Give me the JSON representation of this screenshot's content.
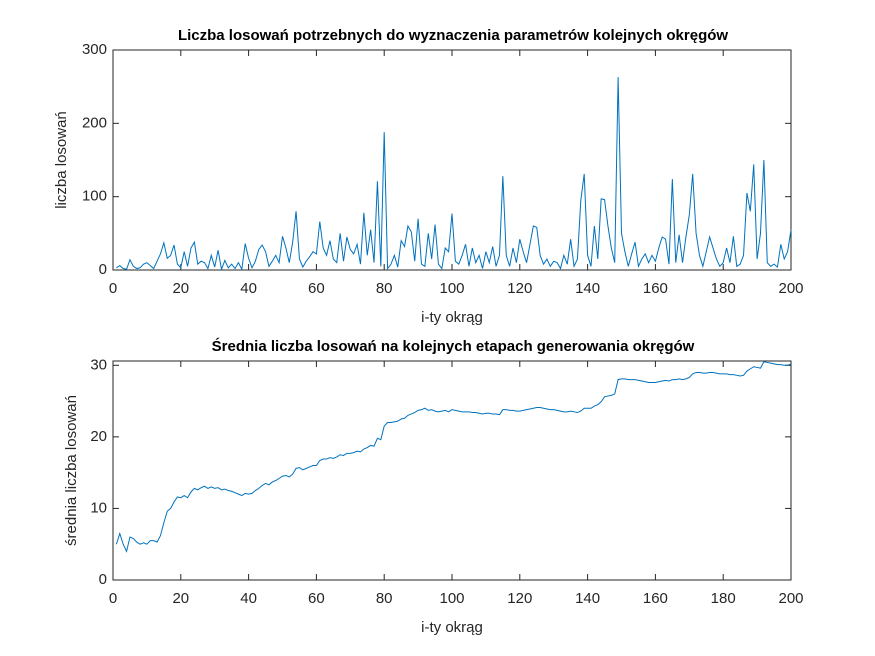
{
  "chart_data": [
    {
      "type": "line",
      "title": "Liczba losowań potrzebnych do wyznaczenia parametrów kolejnych okręgów",
      "xlabel": "i-ty okrąg",
      "ylabel": "liczba losowań",
      "color": "#0072bd",
      "x": [
        1,
        2,
        3,
        4,
        5,
        6,
        7,
        8,
        9,
        10,
        11,
        12,
        13,
        14,
        15,
        16,
        17,
        18,
        19,
        20,
        21,
        22,
        23,
        24,
        25,
        26,
        27,
        28,
        29,
        30,
        31,
        32,
        33,
        34,
        35,
        36,
        37,
        38,
        39,
        40,
        41,
        42,
        43,
        44,
        45,
        46,
        47,
        48,
        49,
        50,
        51,
        52,
        53,
        54,
        55,
        56,
        57,
        58,
        59,
        60,
        61,
        62,
        63,
        64,
        65,
        66,
        67,
        68,
        69,
        70,
        71,
        72,
        73,
        74,
        75,
        76,
        77,
        78,
        79,
        80,
        81,
        82,
        83,
        84,
        85,
        86,
        87,
        88,
        89,
        90,
        91,
        92,
        93,
        94,
        95,
        96,
        97,
        98,
        99,
        100,
        101,
        102,
        103,
        104,
        105,
        106,
        107,
        108,
        109,
        110,
        111,
        112,
        113,
        114,
        115,
        116,
        117,
        118,
        119,
        120,
        121,
        122,
        123,
        124,
        125,
        126,
        127,
        128,
        129,
        130,
        131,
        132,
        133,
        134,
        135,
        136,
        137,
        138,
        139,
        140,
        141,
        142,
        143,
        144,
        145,
        146,
        147,
        148,
        149,
        150,
        151,
        152,
        153,
        154,
        155,
        156,
        157,
        158,
        159,
        160,
        161,
        162,
        163,
        164,
        165,
        166,
        167,
        168,
        169,
        170,
        171,
        172,
        173,
        174,
        175,
        176,
        177,
        178,
        179,
        180,
        181,
        182,
        183,
        184,
        185,
        186,
        187,
        188,
        189,
        190,
        191,
        192,
        193,
        194,
        195,
        196,
        197,
        198,
        199,
        200
      ],
      "values": [
        3,
        6,
        2,
        1,
        14,
        5,
        2,
        3,
        8,
        10,
        6,
        2,
        12,
        22,
        37,
        16,
        20,
        34,
        8,
        3,
        25,
        5,
        30,
        38,
        8,
        12,
        10,
        2,
        20,
        4,
        27,
        1,
        13,
        3,
        8,
        2,
        10,
        1,
        36,
        16,
        3,
        12,
        28,
        34,
        25,
        5,
        12,
        20,
        10,
        46,
        30,
        10,
        38,
        80,
        15,
        4,
        12,
        18,
        25,
        22,
        66,
        30,
        20,
        40,
        15,
        10,
        50,
        12,
        45,
        28,
        22,
        35,
        8,
        78,
        20,
        55,
        10,
        121,
        5,
        188,
        2,
        8,
        20,
        4,
        40,
        32,
        60,
        52,
        12,
        70,
        8,
        5,
        50,
        15,
        62,
        8,
        2,
        30,
        25,
        77,
        12,
        8,
        20,
        35,
        5,
        30,
        10,
        20,
        2,
        25,
        10,
        32,
        5,
        20,
        128,
        20,
        5,
        30,
        10,
        42,
        25,
        10,
        35,
        60,
        58,
        20,
        8,
        15,
        5,
        12,
        10,
        2,
        20,
        8,
        42,
        5,
        15,
        95,
        131,
        20,
        5,
        60,
        15,
        97,
        96,
        60,
        30,
        10,
        263,
        50,
        25,
        5,
        22,
        38,
        5,
        15,
        22,
        10,
        20,
        12,
        30,
        45,
        42,
        8,
        124,
        10,
        48,
        10,
        45,
        75,
        131,
        50,
        20,
        5,
        25,
        45,
        30,
        15,
        5,
        10,
        30,
        10,
        46,
        5,
        8,
        20,
        105,
        80,
        144,
        15,
        50,
        150,
        10,
        5,
        8,
        4,
        35,
        15,
        25,
        55
      ],
      "xlim": [
        0,
        200
      ],
      "xticks": [
        0,
        20,
        40,
        60,
        80,
        100,
        120,
        140,
        160,
        180,
        200
      ],
      "ylim": [
        0,
        300
      ],
      "yticks": [
        0,
        100,
        200,
        300
      ]
    },
    {
      "type": "line",
      "title": "Średnia liczba losowań na kolejnych etapach generowania okręgów",
      "xlabel": "i-ty okrąg",
      "ylabel": "średnia liczba losowań",
      "color": "#0072bd",
      "x": [
        1,
        2,
        3,
        4,
        5,
        6,
        7,
        8,
        9,
        10,
        11,
        12,
        13,
        14,
        15,
        16,
        17,
        18,
        19,
        20,
        21,
        22,
        23,
        24,
        25,
        26,
        27,
        28,
        29,
        30,
        31,
        32,
        33,
        34,
        35,
        36,
        37,
        38,
        39,
        40,
        41,
        42,
        43,
        44,
        45,
        46,
        47,
        48,
        49,
        50,
        51,
        52,
        53,
        54,
        55,
        56,
        57,
        58,
        59,
        60,
        61,
        62,
        63,
        64,
        65,
        66,
        67,
        68,
        69,
        70,
        71,
        72,
        73,
        74,
        75,
        76,
        77,
        78,
        79,
        80,
        81,
        82,
        83,
        84,
        85,
        86,
        87,
        88,
        89,
        90,
        91,
        92,
        93,
        94,
        95,
        96,
        97,
        98,
        99,
        100,
        101,
        102,
        103,
        104,
        105,
        106,
        107,
        108,
        109,
        110,
        111,
        112,
        113,
        114,
        115,
        116,
        117,
        118,
        119,
        120,
        121,
        122,
        123,
        124,
        125,
        126,
        127,
        128,
        129,
        130,
        131,
        132,
        133,
        134,
        135,
        136,
        137,
        138,
        139,
        140,
        141,
        142,
        143,
        144,
        145,
        146,
        147,
        148,
        149,
        150,
        151,
        152,
        153,
        154,
        155,
        156,
        157,
        158,
        159,
        160,
        161,
        162,
        163,
        164,
        165,
        166,
        167,
        168,
        169,
        170,
        171,
        172,
        173,
        174,
        175,
        176,
        177,
        178,
        179,
        180,
        181,
        182,
        183,
        184,
        185,
        186,
        187,
        188,
        189,
        190,
        191,
        192,
        193,
        194,
        195,
        196,
        197,
        198,
        199,
        200
      ],
      "values": [
        5,
        6.5,
        5,
        4,
        6,
        5.8,
        5.3,
        5,
        5.2,
        5,
        5.5,
        5.5,
        5.3,
        6.2,
        8,
        9.6,
        10,
        10.9,
        11.6,
        11.5,
        11.8,
        11.5,
        12.3,
        12.8,
        12.6,
        12.9,
        13.1,
        12.8,
        13,
        12.8,
        12.9,
        12.6,
        12.7,
        12.5,
        12.4,
        12.2,
        12,
        11.8,
        12.1,
        12,
        12.1,
        12.5,
        12.8,
        13.2,
        13.5,
        13.3,
        13.7,
        13.9,
        14.2,
        14.5,
        14.6,
        14.4,
        14.8,
        15.6,
        15.7,
        15.4,
        15.6,
        15.8,
        16,
        16,
        16.7,
        16.9,
        16.9,
        17.1,
        17,
        17.2,
        17.5,
        17.4,
        17.7,
        17.7,
        17.8,
        18,
        17.9,
        18.3,
        18.5,
        18.8,
        18.7,
        19.8,
        19.6,
        21.5,
        22,
        22,
        22.1,
        22.2,
        22.5,
        22.6,
        23,
        23.2,
        23.4,
        23.7,
        23.8,
        24,
        23.7,
        23.8,
        23.6,
        23.5,
        23.6,
        23.7,
        23.5,
        23.8,
        23.7,
        23.6,
        23.5,
        23.5,
        23.5,
        23.4,
        23.4,
        23.3,
        23.2,
        23.3,
        23.3,
        23.2,
        23.2,
        23.1,
        23.8,
        23.8,
        23.7,
        23.7,
        23.6,
        23.6,
        23.7,
        23.8,
        23.9,
        24,
        24.1,
        24.1,
        24,
        23.9,
        23.8,
        23.8,
        23.7,
        23.6,
        23.5,
        23.5,
        23.6,
        23.5,
        23.4,
        23.6,
        24,
        24,
        24,
        24.3,
        24.5,
        24.9,
        25.6,
        25.7,
        25.8,
        26,
        28,
        28.1,
        28.1,
        28,
        28,
        28,
        27.9,
        27.8,
        27.7,
        27.6,
        27.6,
        27.6,
        27.7,
        27.8,
        27.9,
        27.8,
        28,
        28,
        28.1,
        28,
        28.1,
        28.3,
        28.8,
        29,
        29,
        28.9,
        28.9,
        29,
        29,
        28.9,
        28.8,
        28.8,
        28.8,
        28.7,
        28.7,
        28.6,
        28.5,
        28.6,
        29.2,
        29.5,
        29.8,
        29.7,
        29.6,
        30.5,
        30.4,
        30.3,
        30.2,
        30.1,
        30.1,
        30,
        30,
        30.2
      ],
      "xlim": [
        0,
        200
      ],
      "xticks": [
        0,
        20,
        40,
        60,
        80,
        100,
        120,
        140,
        160,
        180,
        200
      ],
      "ylim": [
        0,
        30.6
      ],
      "yticks": [
        0,
        10,
        20,
        30
      ]
    }
  ]
}
